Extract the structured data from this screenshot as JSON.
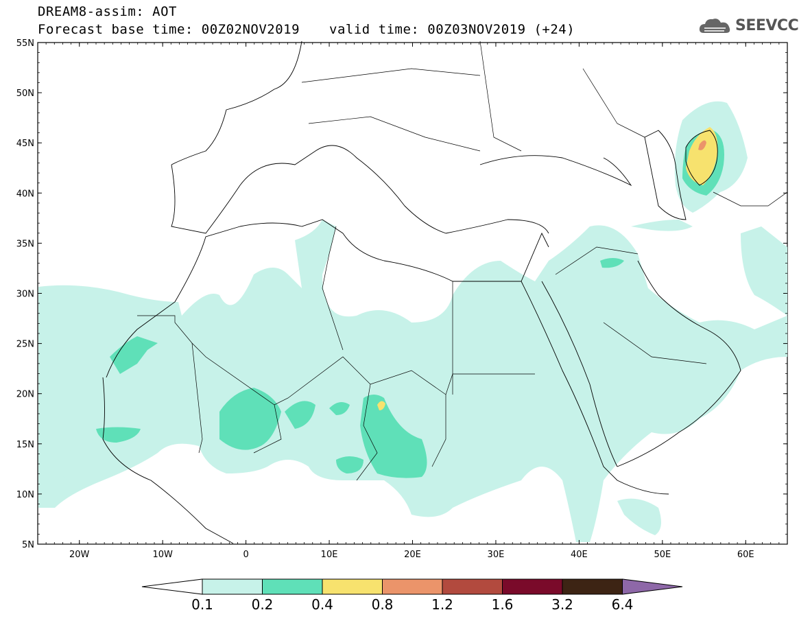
{
  "header": {
    "title": "DREAM8-assim: AOT",
    "base_time": "Forecast base time: 00Z02NOV2019",
    "valid_time": "valid time: 00Z03NOV2019 (+24)"
  },
  "logo": {
    "text": "SEEVCCC",
    "icon": "cloud-icon"
  },
  "map": {
    "lat_labels": [
      "55N",
      "50N",
      "45N",
      "40N",
      "35N",
      "30N",
      "25N",
      "20N",
      "15N",
      "10N",
      "5N"
    ],
    "lat_values": [
      55,
      50,
      45,
      40,
      35,
      30,
      25,
      20,
      15,
      10,
      5
    ],
    "lon_labels": [
      "20W",
      "10W",
      "0",
      "10E",
      "20E",
      "30E",
      "40E",
      "50E",
      "60E"
    ],
    "lon_values": [
      -20,
      -10,
      0,
      10,
      20,
      30,
      40,
      50,
      60
    ],
    "lon_range": [
      -25,
      65
    ],
    "lat_range": [
      5,
      55
    ]
  },
  "legend": {
    "labels": [
      "0.1",
      "0.2",
      "0.4",
      "0.8",
      "1.2",
      "1.6",
      "3.2",
      "6.4"
    ],
    "colors": [
      "#ffffff",
      "#c7f2e9",
      "#5fe0b8",
      "#f7e26e",
      "#eb946a",
      "#b24a3e",
      "#7a0a2a",
      "#3d2414",
      "#8e68a8"
    ]
  }
}
